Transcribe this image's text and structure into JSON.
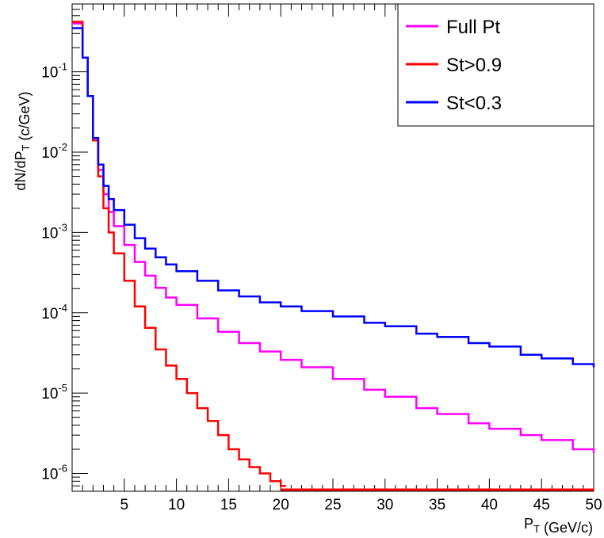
{
  "chart_data": {
    "type": "line",
    "step": true,
    "xlabel": "P_T (GeV/c)",
    "ylabel": "dN/dP_T (c/GeV)",
    "xlim": [
      0,
      50
    ],
    "ylim": [
      6e-07,
      0.7
    ],
    "yscale": "log",
    "legend_position": "top-right",
    "x_ticks": [
      5,
      10,
      15,
      20,
      25,
      30,
      35,
      40,
      45,
      50
    ],
    "y_ticks": [
      {
        "value": 1e-06,
        "mantissa": "10",
        "exponent": "-6"
      },
      {
        "value": 1e-05,
        "mantissa": "10",
        "exponent": "-5"
      },
      {
        "value": 0.0001,
        "mantissa": "10",
        "exponent": "-4"
      },
      {
        "value": 0.001,
        "mantissa": "10",
        "exponent": "-3"
      },
      {
        "value": 0.01,
        "mantissa": "10",
        "exponent": "-2"
      },
      {
        "value": 0.1,
        "mantissa": "10",
        "exponent": "-1"
      }
    ],
    "series": [
      {
        "name": "Full Pt",
        "color": "#ff00ff",
        "x": [
          0.5,
          1,
          1.5,
          2,
          2.5,
          3,
          3.5,
          4,
          5,
          6,
          7,
          8,
          9,
          10,
          12,
          14,
          16,
          18,
          20,
          22,
          25,
          28,
          30,
          33,
          35,
          38,
          40,
          43,
          45,
          48,
          50
        ],
        "y": [
          0.4,
          0.15,
          0.05,
          0.015,
          0.006,
          0.003,
          0.0018,
          0.0012,
          0.0007,
          0.00043,
          0.00029,
          0.000205,
          0.000155,
          0.000125,
          8.5e-05,
          5.8e-05,
          4.2e-05,
          3.3e-05,
          2.6e-05,
          2.1e-05,
          1.5e-05,
          1.1e-05,
          9e-06,
          6.5e-06,
          5.5e-06,
          4.2e-06,
          3.6e-06,
          3e-06,
          2.6e-06,
          2e-06,
          1.8e-06
        ]
      },
      {
        "name": "St>0.9",
        "color": "#ff0000",
        "x": [
          0.5,
          1,
          1.5,
          2,
          2.5,
          3,
          3.5,
          4,
          5,
          6,
          7,
          8,
          9,
          10,
          11,
          12,
          13,
          14,
          15,
          16,
          17,
          18,
          19,
          20
        ],
        "y": [
          0.42,
          0.15,
          0.05,
          0.014,
          0.005,
          0.002,
          0.001,
          0.00055,
          0.00025,
          0.00012,
          6.5e-05,
          3.5e-05,
          2.2e-05,
          1.5e-05,
          1e-05,
          6.5e-06,
          4.5e-06,
          3e-06,
          2e-06,
          1.5e-06,
          1.2e-06,
          1e-06,
          8e-07,
          7e-07
        ]
      },
      {
        "name": "St<0.3",
        "color": "#0000ff",
        "x": [
          0.5,
          1,
          1.5,
          2,
          2.5,
          3,
          3.5,
          4,
          5,
          6,
          7,
          8,
          9,
          10,
          12,
          14,
          16,
          18,
          20,
          22,
          25,
          28,
          30,
          33,
          35,
          38,
          40,
          43,
          45,
          48,
          50
        ],
        "y": [
          0.35,
          0.15,
          0.05,
          0.015,
          0.007,
          0.0038,
          0.0026,
          0.0019,
          0.00125,
          0.00085,
          0.00063,
          0.00049,
          0.0004,
          0.00033,
          0.00025,
          0.00019,
          0.00016,
          0.000135,
          0.00012,
          0.000105,
          9e-05,
          7.5e-05,
          6.8e-05,
          5.5e-05,
          5e-05,
          4.2e-05,
          3.8e-05,
          3e-05,
          2.7e-05,
          2.3e-05,
          2.1e-05
        ]
      }
    ]
  }
}
